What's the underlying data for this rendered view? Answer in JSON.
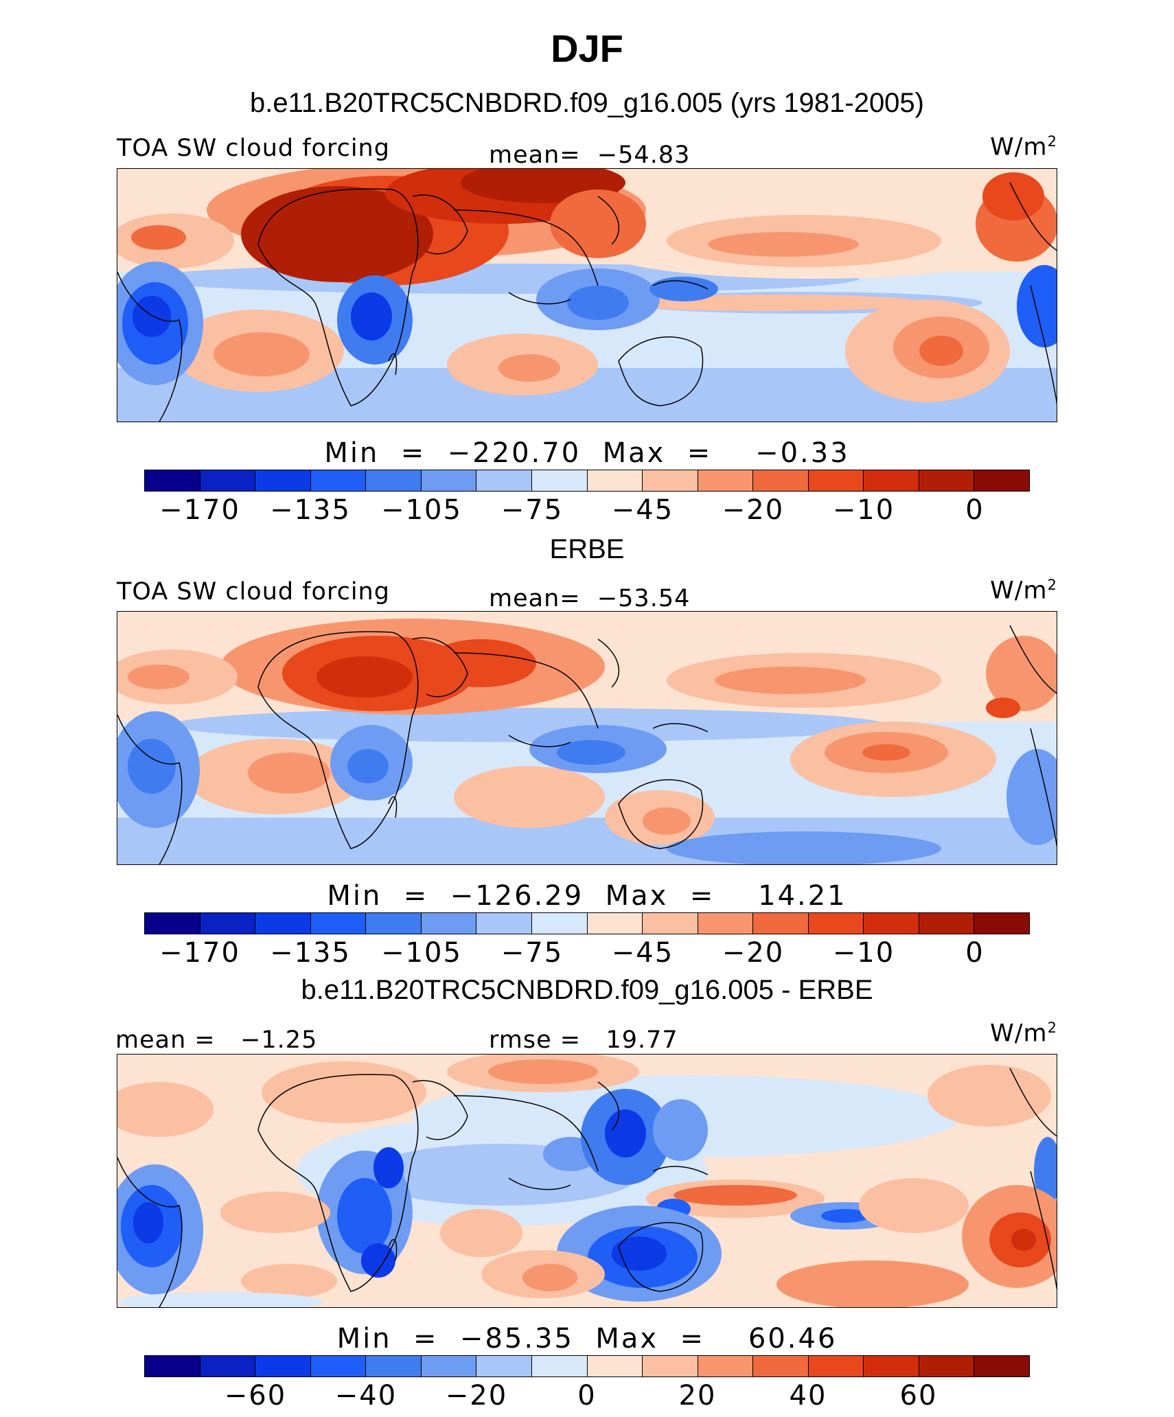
{
  "title": "DJF",
  "colors": {
    "palette": [
      "#08008c",
      "#0a22c4",
      "#0b3ae6",
      "#1f5ef7",
      "#3f7cf0",
      "#6e9cf2",
      "#a8c6f7",
      "#d8e8fb",
      "#fde3d2",
      "#fbbfa2",
      "#f7966e",
      "#f06a3e",
      "#e8481c",
      "#d22e0c",
      "#b01e06",
      "#8a0a04"
    ],
    "land_outline": "#000000"
  },
  "panels": [
    {
      "title": "b.e11.B20TRC5CNBDRD.f09_g16.005 (yrs 1981-2005)",
      "left_label": "TOA SW cloud forcing",
      "center_label": "mean=  −54.83",
      "units": "W/m",
      "units_sup": "2",
      "min_max": "Min  =  −220.70  Max  =    −0.33",
      "colorbar_ticks": [
        "−170",
        "−135",
        "−105",
        "−75",
        "−45",
        "−20",
        "−10",
        "0"
      ]
    },
    {
      "title": "ERBE",
      "left_label": "TOA SW cloud forcing",
      "center_label": "mean=  −53.54",
      "units": "W/m",
      "units_sup": "2",
      "min_max": "Min  =  −126.29  Max  =    14.21",
      "colorbar_ticks": [
        "−170",
        "−135",
        "−105",
        "−75",
        "−45",
        "−20",
        "−10",
        "0"
      ]
    },
    {
      "title": "b.e11.B20TRC5CNBDRD.f09_g16.005 - ERBE",
      "left_label": "mean =   −1.25",
      "center_label": "rmse =   19.77",
      "units": "W/m",
      "units_sup": "2",
      "min_max": "Min  =  −85.35  Max  =    60.46",
      "colorbar_ticks": [
        "−60",
        "−40",
        "−20",
        "0",
        "20",
        "40",
        "60"
      ]
    }
  ]
}
